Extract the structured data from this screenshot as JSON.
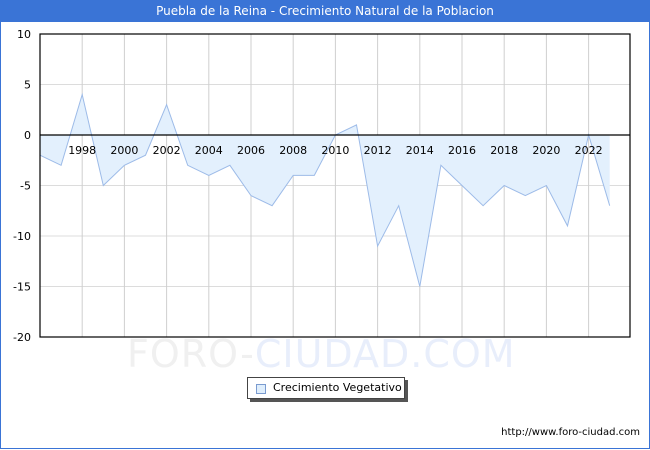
{
  "title": "Puebla de la Reina - Crecimiento Natural de la Poblacion",
  "watermark": {
    "part1": "FORO-",
    "part2": "CIUDAD.COM"
  },
  "legend": {
    "label": "Crecimiento Vegetativo",
    "swatch_color": "#dfeefc"
  },
  "source": "http://www.foro-ciudad.com",
  "colors": {
    "header": "#3a74d6",
    "line": "#9dbbe8",
    "fill": "#e3f0fd"
  },
  "chart_data": {
    "type": "area",
    "title": "Puebla de la Reina - Crecimiento Natural de la Poblacion",
    "xlabel": "",
    "ylabel": "",
    "ylim": [
      -20,
      10
    ],
    "yticks": [
      10,
      5,
      0,
      -5,
      -10,
      -15,
      -20
    ],
    "xtick_labels": [
      "1998",
      "2000",
      "2002",
      "2004",
      "2006",
      "2008",
      "2010",
      "2012",
      "2014",
      "2016",
      "2018",
      "2020",
      "2022"
    ],
    "grid": true,
    "legend_position": "bottom",
    "x": [
      1996,
      1997,
      1998,
      1999,
      2000,
      2001,
      2002,
      2003,
      2004,
      2005,
      2006,
      2007,
      2008,
      2009,
      2010,
      2011,
      2012,
      2013,
      2014,
      2015,
      2016,
      2017,
      2018,
      2019,
      2020,
      2021,
      2022,
      2023
    ],
    "series": [
      {
        "name": "Crecimiento Vegetativo",
        "values": [
          -2,
          -3,
          4,
          -5,
          -3,
          -2,
          3,
          -3,
          -4,
          -3,
          -6,
          -7,
          -4,
          -4,
          0,
          1,
          -11,
          -7,
          -15,
          -3,
          -5,
          -7,
          -5,
          -6,
          -5,
          -9,
          0,
          -7
        ]
      }
    ]
  }
}
